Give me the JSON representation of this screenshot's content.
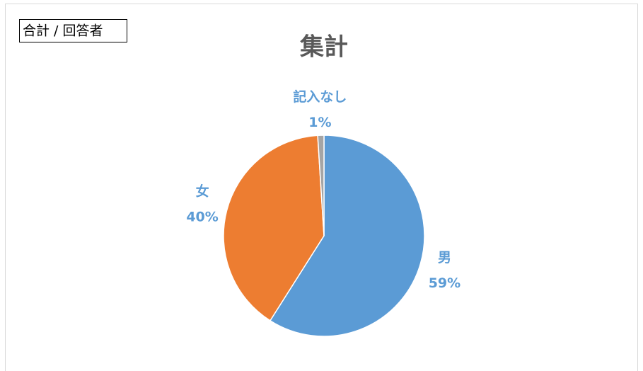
{
  "pivot_label": "合計 / 回答者",
  "chart_data": {
    "type": "pie",
    "title": "集計",
    "categories": [
      "男",
      "女",
      "記入なし"
    ],
    "values": [
      59,
      40,
      1
    ],
    "value_labels": [
      "59%",
      "40%",
      "1%"
    ],
    "colors": [
      "#5b9bd5",
      "#ed7d31",
      "#a5a5a5"
    ],
    "label_color": "#5b9bd5",
    "legend": false
  }
}
